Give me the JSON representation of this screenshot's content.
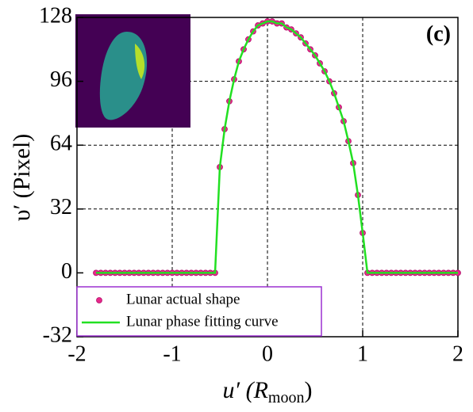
{
  "chart_data": {
    "type": "scatter_line",
    "annotation": "(c)",
    "y_label": "υ′ (Pixel)",
    "x_label": {
      "main": "u′ (R",
      "sub": "moon",
      "close": ")"
    },
    "xlim": [
      -2,
      2
    ],
    "xticks": [
      -2,
      -1,
      0,
      1,
      2
    ],
    "ylim": [
      -32,
      128
    ],
    "yticks": [
      -32,
      0,
      32,
      64,
      96,
      128
    ],
    "grid": true,
    "legend": "lower left",
    "x": [
      -1.8,
      -1.75,
      -1.7,
      -1.65,
      -1.6,
      -1.55,
      -1.5,
      -1.45,
      -1.4,
      -1.35,
      -1.3,
      -1.25,
      -1.2,
      -1.15,
      -1.1,
      -1.05,
      -1.0,
      -0.95,
      -0.9,
      -0.85,
      -0.8,
      -0.75,
      -0.7,
      -0.65,
      -0.6,
      -0.55,
      -0.5,
      -0.45,
      -0.4,
      -0.35,
      -0.3,
      -0.25,
      -0.2,
      -0.15,
      -0.1,
      -0.05,
      0,
      0.05,
      0.1,
      0.15,
      0.2,
      0.25,
      0.3,
      0.35,
      0.4,
      0.45,
      0.5,
      0.55,
      0.6,
      0.65,
      0.7,
      0.75,
      0.8,
      0.85,
      0.9,
      0.95,
      1.0,
      1.05,
      1.1,
      1.15,
      1.2,
      1.25,
      1.3,
      1.35,
      1.4,
      1.45,
      1.5,
      1.55,
      1.6,
      1.65,
      1.7,
      1.75,
      1.8,
      1.85,
      1.9,
      1.95,
      2.0
    ],
    "series": [
      {
        "name": "Lunar actual shape",
        "kind": "scatter",
        "color": "#e8288a",
        "values": [
          0,
          0,
          0,
          0,
          0,
          0,
          0,
          0,
          0,
          0,
          0,
          0,
          0,
          0,
          0,
          0,
          0,
          0,
          0,
          0,
          0,
          0,
          0,
          0,
          0,
          0,
          53,
          72,
          86,
          97,
          106,
          112,
          117,
          121,
          124,
          125,
          126,
          126,
          125,
          125,
          123,
          122,
          120,
          118,
          115,
          112,
          109,
          105,
          101,
          96,
          90,
          83,
          76,
          66,
          55,
          39,
          20,
          0,
          0,
          0,
          0,
          0,
          0,
          0,
          0,
          0,
          0,
          0,
          0,
          0,
          0,
          0,
          0,
          0,
          0,
          0,
          0
        ]
      },
      {
        "name": "Lunar phase fitting curve",
        "kind": "line",
        "color": "#22e022",
        "values": [
          0,
          0,
          0,
          0,
          0,
          0,
          0,
          0,
          0,
          0,
          0,
          0,
          0,
          0,
          0,
          0,
          0,
          0,
          0,
          0,
          0,
          0,
          0,
          0,
          0,
          0,
          53,
          72,
          86,
          97,
          106,
          112,
          117,
          121,
          124,
          125,
          126,
          126,
          125,
          125,
          123,
          122,
          120,
          118,
          115,
          112,
          109,
          105,
          101,
          96,
          90,
          83,
          76,
          66,
          55,
          39,
          20,
          0,
          0,
          0,
          0,
          0,
          0,
          0,
          0,
          0,
          0,
          0,
          0,
          0,
          0,
          0,
          0,
          0,
          0,
          0,
          0
        ]
      }
    ]
  }
}
